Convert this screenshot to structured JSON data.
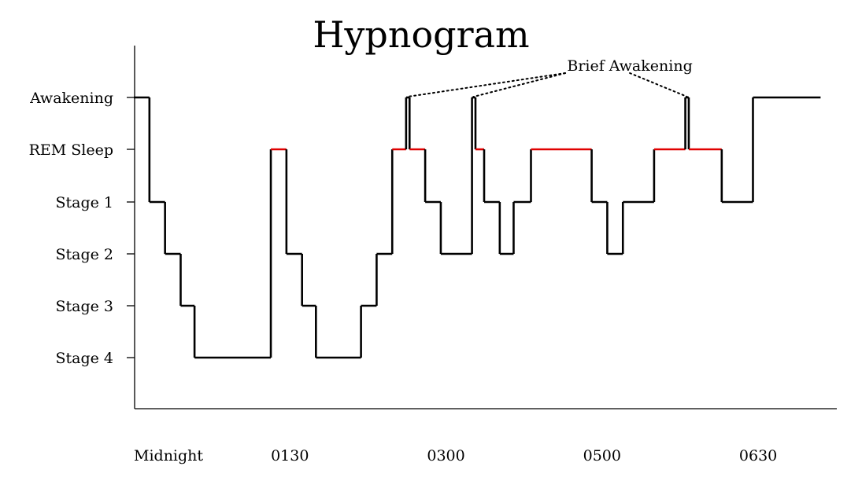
{
  "chart_data": {
    "type": "line",
    "title": "Hypnogram",
    "xlabel": "",
    "ylabel": "",
    "step": true,
    "grid": false,
    "y_categories": [
      "Stage 4",
      "Stage 3",
      "Stage 2",
      "Stage 1",
      "REM Sleep",
      "Awakening"
    ],
    "y_category_colors": [
      "#000000",
      "#000000",
      "#000000",
      "#000000",
      "#e00000",
      "#000000"
    ],
    "x_tick_labels": [
      "Midnight",
      "0130",
      "0300",
      "0500",
      "0630"
    ],
    "x_tick_values": [
      0,
      90,
      180,
      270,
      360
    ],
    "xlim": [
      0,
      440
    ],
    "line_color": "#000000",
    "rem_color": "#e00000",
    "steps": [
      {
        "x0": 0,
        "x1": 9,
        "level": "Awakening"
      },
      {
        "x0": 9,
        "x1": 18,
        "level": "Stage 1"
      },
      {
        "x0": 18,
        "x1": 27,
        "level": "Stage 2"
      },
      {
        "x0": 27,
        "x1": 35,
        "level": "Stage 3"
      },
      {
        "x0": 35,
        "x1": 79,
        "level": "Stage 4"
      },
      {
        "x0": 79,
        "x1": 88,
        "level": "REM Sleep"
      },
      {
        "x0": 88,
        "x1": 97,
        "level": "Stage 2"
      },
      {
        "x0": 97,
        "x1": 105,
        "level": "Stage 3"
      },
      {
        "x0": 105,
        "x1": 131,
        "level": "Stage 4"
      },
      {
        "x0": 131,
        "x1": 140,
        "level": "Stage 3"
      },
      {
        "x0": 140,
        "x1": 149,
        "level": "Stage 2"
      },
      {
        "x0": 149,
        "x1": 157,
        "level": "REM Sleep"
      },
      {
        "x0": 157,
        "x1": 159,
        "level": "Awakening"
      },
      {
        "x0": 159,
        "x1": 168,
        "level": "REM Sleep"
      },
      {
        "x0": 168,
        "x1": 177,
        "level": "Stage 1"
      },
      {
        "x0": 177,
        "x1": 195,
        "level": "Stage 2"
      },
      {
        "x0": 195,
        "x1": 197,
        "level": "Awakening"
      },
      {
        "x0": 197,
        "x1": 202,
        "level": "REM Sleep"
      },
      {
        "x0": 202,
        "x1": 211,
        "level": "Stage 1"
      },
      {
        "x0": 211,
        "x1": 219,
        "level": "Stage 2"
      },
      {
        "x0": 219,
        "x1": 229,
        "level": "Stage 1"
      },
      {
        "x0": 229,
        "x1": 264,
        "level": "REM Sleep"
      },
      {
        "x0": 264,
        "x1": 273,
        "level": "Stage 1"
      },
      {
        "x0": 273,
        "x1": 282,
        "level": "Stage 2"
      },
      {
        "x0": 282,
        "x1": 300,
        "level": "Stage 1"
      },
      {
        "x0": 300,
        "x1": 318,
        "level": "REM Sleep"
      },
      {
        "x0": 318,
        "x1": 320,
        "level": "Awakening"
      },
      {
        "x0": 320,
        "x1": 339,
        "level": "REM Sleep"
      },
      {
        "x0": 339,
        "x1": 357,
        "level": "Stage 1"
      },
      {
        "x0": 357,
        "x1": 396,
        "level": "Awakening"
      }
    ],
    "annotations": [
      {
        "text": "Brief Awakening",
        "x": 286,
        "level": "Awakening",
        "points_to": [
          158,
          196,
          319
        ]
      }
    ]
  }
}
